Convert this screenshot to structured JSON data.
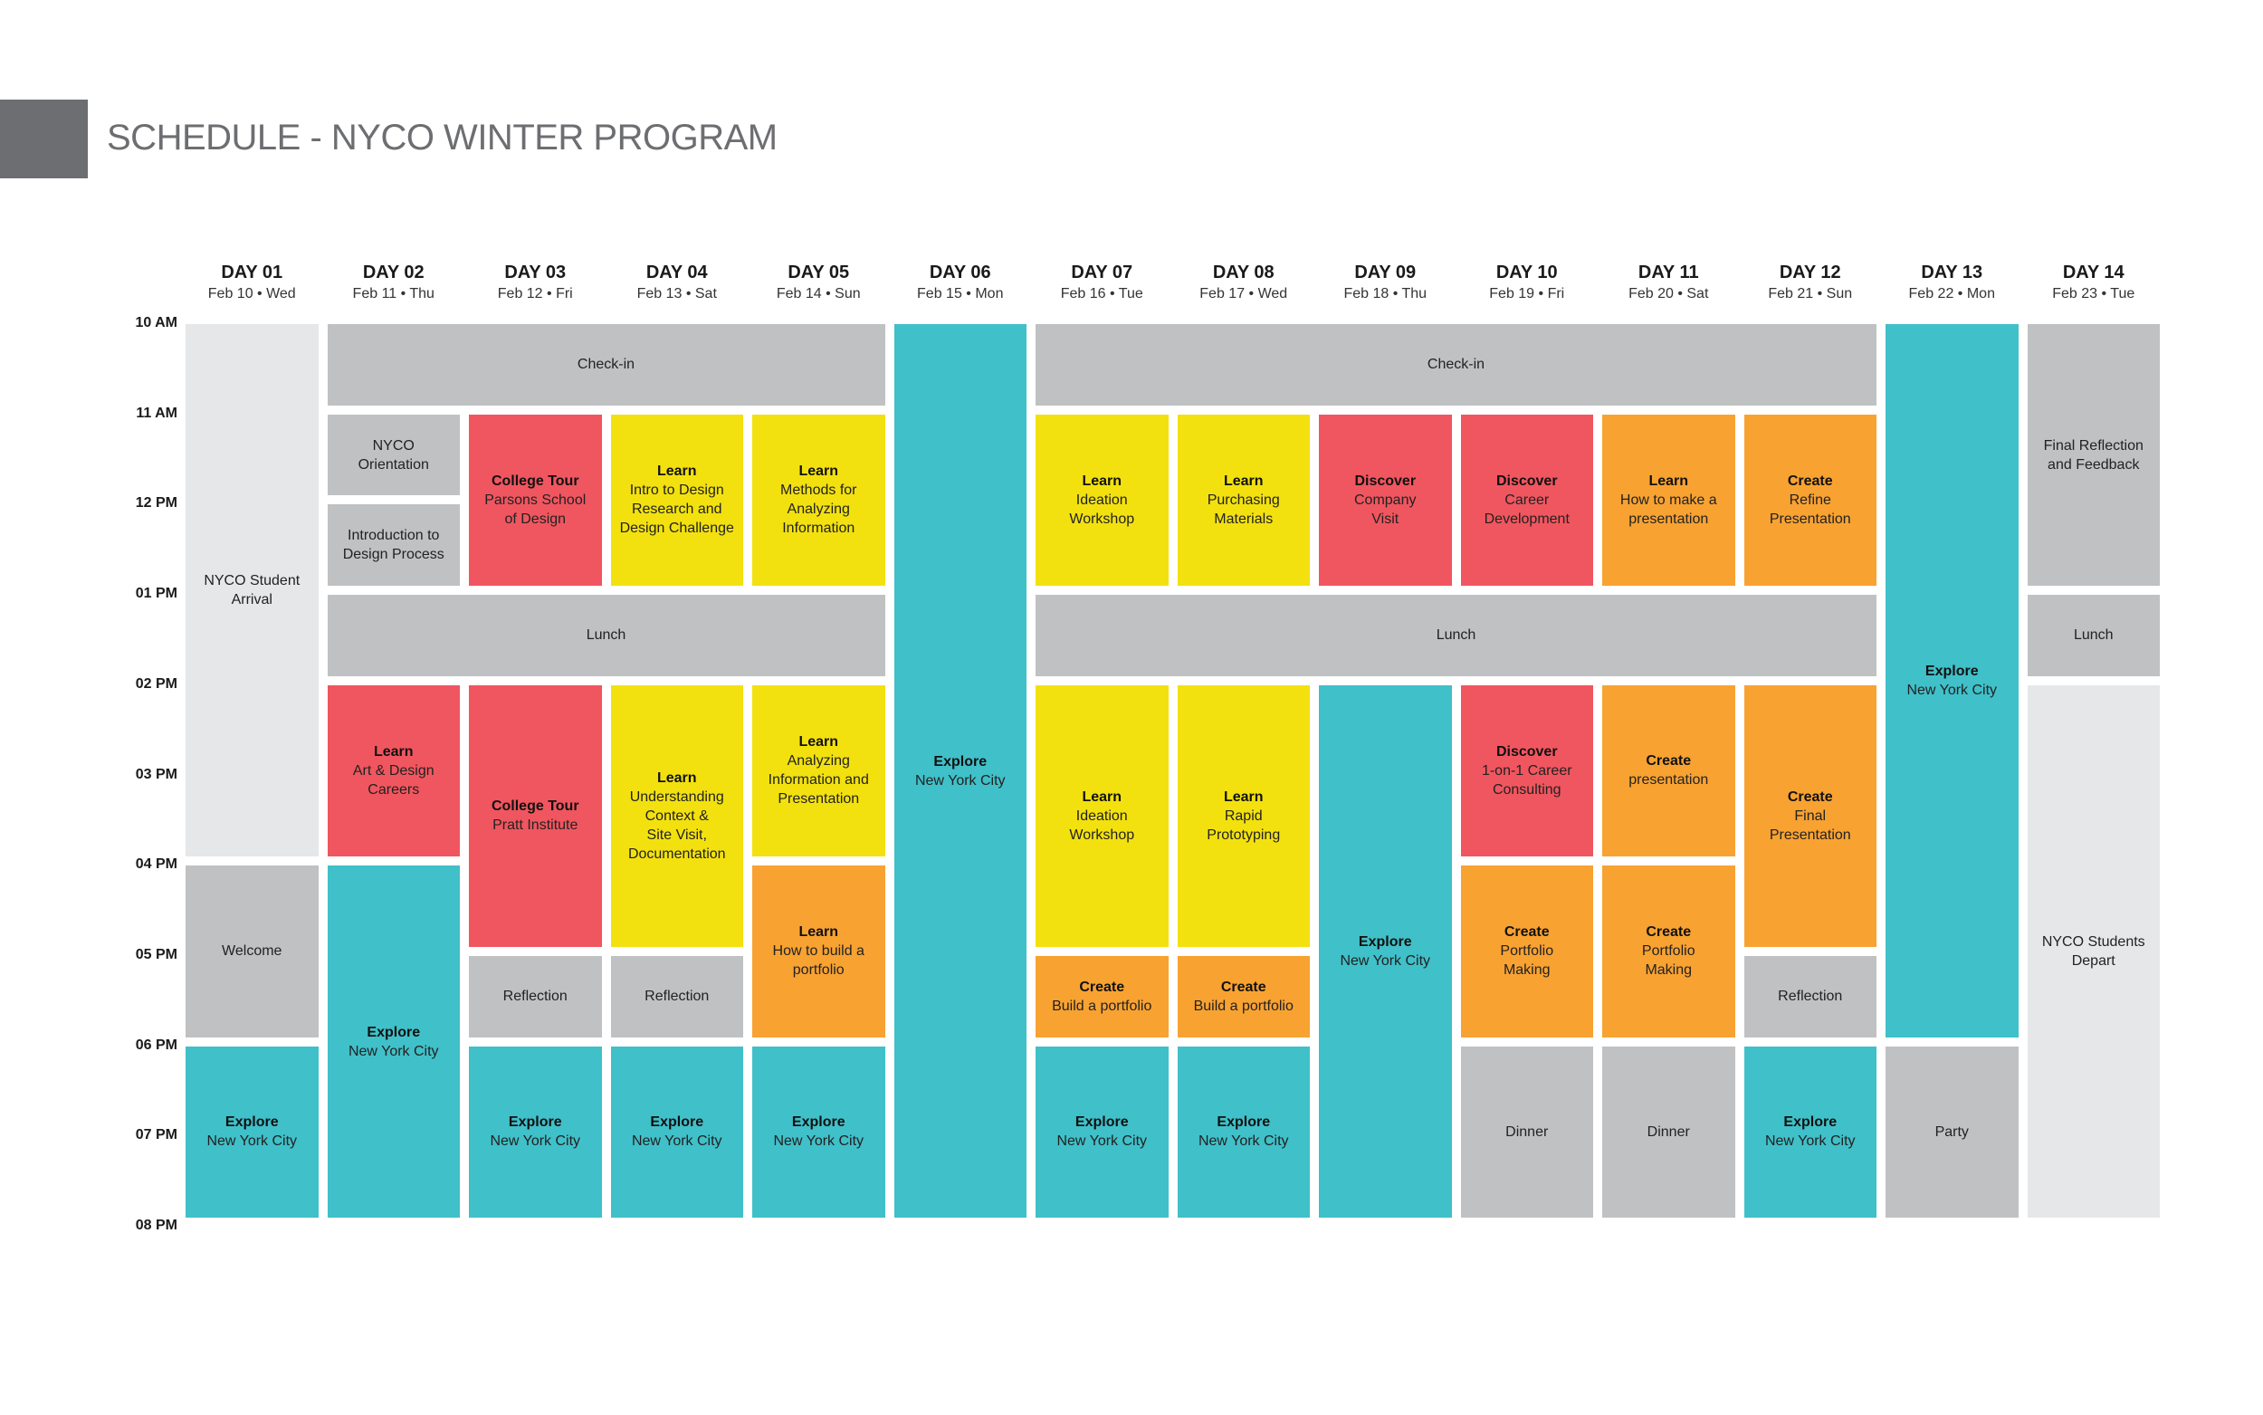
{
  "title": "SCHEDULE - NYCO WINTER PROGRAM",
  "colors": {
    "grey_tab": "#6d6e71",
    "gray": "#c0c1c3",
    "light": "#e6e7e8",
    "teal": "#40c0c9",
    "red": "#f0565f",
    "yellow": "#f3e10f",
    "orange": "#f8a232"
  },
  "times": [
    "10 AM",
    "11 AM",
    "12 PM",
    "01 PM",
    "02 PM",
    "03 PM",
    "04 PM",
    "05 PM",
    "06 PM",
    "07 PM",
    "08 PM"
  ],
  "days": [
    {
      "label": "DAY 01",
      "date": "Feb 10 • Wed"
    },
    {
      "label": "DAY 02",
      "date": "Feb 11 • Thu"
    },
    {
      "label": "DAY 03",
      "date": "Feb 12 • Fri"
    },
    {
      "label": "DAY 04",
      "date": "Feb 13 • Sat"
    },
    {
      "label": "DAY 05",
      "date": "Feb 14 • Sun"
    },
    {
      "label": "DAY 06",
      "date": "Feb 15 • Mon"
    },
    {
      "label": "DAY 07",
      "date": "Feb 16 • Tue"
    },
    {
      "label": "DAY 08",
      "date": "Feb 17 • Wed"
    },
    {
      "label": "DAY 09",
      "date": "Feb 18 • Thu"
    },
    {
      "label": "DAY 10",
      "date": "Feb 19 • Fri"
    },
    {
      "label": "DAY 11",
      "date": "Feb 20 • Sat"
    },
    {
      "label": "DAY 12",
      "date": "Feb 21 • Sun"
    },
    {
      "label": "DAY 13",
      "date": "Feb 22 • Mon"
    },
    {
      "label": "DAY 14",
      "date": "Feb 23 • Tue"
    }
  ],
  "events": [
    {
      "day_start": 1,
      "day_end": 1,
      "start": "10 AM",
      "end": "04 PM",
      "color": "light",
      "title": "",
      "text": "NYCO Student\nArrival"
    },
    {
      "day_start": 1,
      "day_end": 1,
      "start": "04 PM",
      "end": "06 PM",
      "color": "gray",
      "title": "",
      "text": "Welcome"
    },
    {
      "day_start": 1,
      "day_end": 1,
      "start": "06 PM",
      "end": "08 PM",
      "color": "teal",
      "title": "Explore",
      "text": "New York City"
    },
    {
      "day_start": 2,
      "day_end": 5,
      "start": "10 AM",
      "end": "11 AM",
      "color": "gray",
      "title": "",
      "text": "Check-in"
    },
    {
      "day_start": 2,
      "day_end": 2,
      "start": "11 AM",
      "end": "12 PM",
      "color": "gray",
      "title": "",
      "text": "NYCO\nOrientation"
    },
    {
      "day_start": 2,
      "day_end": 2,
      "start": "12 PM",
      "end": "01 PM",
      "color": "gray",
      "title": "",
      "text": "Introduction to\nDesign Process"
    },
    {
      "day_start": 2,
      "day_end": 5,
      "start": "01 PM",
      "end": "02 PM",
      "color": "gray",
      "title": "",
      "text": "Lunch"
    },
    {
      "day_start": 2,
      "day_end": 2,
      "start": "02 PM",
      "end": "04 PM",
      "color": "red",
      "title": "Learn",
      "text": "Art & Design\nCareers"
    },
    {
      "day_start": 2,
      "day_end": 2,
      "start": "04 PM",
      "end": "08 PM",
      "color": "teal",
      "title": "Explore",
      "text": "New York City"
    },
    {
      "day_start": 3,
      "day_end": 3,
      "start": "11 AM",
      "end": "01 PM",
      "color": "red",
      "title": "College Tour",
      "text": "Parsons School\nof Design"
    },
    {
      "day_start": 3,
      "day_end": 3,
      "start": "02 PM",
      "end": "05 PM",
      "color": "red",
      "title": "College Tour",
      "text": "Pratt Institute"
    },
    {
      "day_start": 3,
      "day_end": 3,
      "start": "05 PM",
      "end": "06 PM",
      "color": "gray",
      "title": "",
      "text": "Reflection"
    },
    {
      "day_start": 3,
      "day_end": 3,
      "start": "06 PM",
      "end": "08 PM",
      "color": "teal",
      "title": "Explore",
      "text": "New York City"
    },
    {
      "day_start": 4,
      "day_end": 4,
      "start": "11 AM",
      "end": "01 PM",
      "color": "yellow",
      "title": "Learn",
      "text": "Intro to Design\nResearch and\nDesign Challenge"
    },
    {
      "day_start": 4,
      "day_end": 4,
      "start": "02 PM",
      "end": "05 PM",
      "color": "yellow",
      "title": "Learn",
      "text": "Understanding\nContext &\nSite Visit,\nDocumentation"
    },
    {
      "day_start": 4,
      "day_end": 4,
      "start": "05 PM",
      "end": "06 PM",
      "color": "gray",
      "title": "",
      "text": "Reflection"
    },
    {
      "day_start": 4,
      "day_end": 4,
      "start": "06 PM",
      "end": "08 PM",
      "color": "teal",
      "title": "Explore",
      "text": "New York City"
    },
    {
      "day_start": 5,
      "day_end": 5,
      "start": "11 AM",
      "end": "01 PM",
      "color": "yellow",
      "title": "Learn",
      "text": "Methods for\nAnalyzing\nInformation"
    },
    {
      "day_start": 5,
      "day_end": 5,
      "start": "02 PM",
      "end": "04 PM",
      "color": "yellow",
      "title": "Learn",
      "text": "Analyzing\nInformation and\nPresentation"
    },
    {
      "day_start": 5,
      "day_end": 5,
      "start": "04 PM",
      "end": "06 PM",
      "color": "orange",
      "title": "Learn",
      "text": "How to build a\nportfolio"
    },
    {
      "day_start": 5,
      "day_end": 5,
      "start": "06 PM",
      "end": "08 PM",
      "color": "teal",
      "title": "Explore",
      "text": "New York City"
    },
    {
      "day_start": 6,
      "day_end": 6,
      "start": "10 AM",
      "end": "08 PM",
      "color": "teal",
      "title": "Explore",
      "text": "New York City"
    },
    {
      "day_start": 7,
      "day_end": 12,
      "start": "10 AM",
      "end": "11 AM",
      "color": "gray",
      "title": "",
      "text": "Check-in"
    },
    {
      "day_start": 7,
      "day_end": 12,
      "start": "01 PM",
      "end": "02 PM",
      "color": "gray",
      "title": "",
      "text": "Lunch"
    },
    {
      "day_start": 7,
      "day_end": 7,
      "start": "11 AM",
      "end": "01 PM",
      "color": "yellow",
      "title": "Learn",
      "text": "Ideation\nWorkshop"
    },
    {
      "day_start": 7,
      "day_end": 7,
      "start": "02 PM",
      "end": "05 PM",
      "color": "yellow",
      "title": "Learn",
      "text": "Ideation\nWorkshop"
    },
    {
      "day_start": 7,
      "day_end": 7,
      "start": "05 PM",
      "end": "06 PM",
      "color": "orange",
      "title": "Create",
      "text": "Build a portfolio"
    },
    {
      "day_start": 7,
      "day_end": 7,
      "start": "06 PM",
      "end": "08 PM",
      "color": "teal",
      "title": "Explore",
      "text": "New York City"
    },
    {
      "day_start": 8,
      "day_end": 8,
      "start": "11 AM",
      "end": "01 PM",
      "color": "yellow",
      "title": "Learn",
      "text": "Purchasing\nMaterials"
    },
    {
      "day_start": 8,
      "day_end": 8,
      "start": "02 PM",
      "end": "05 PM",
      "color": "yellow",
      "title": "Learn",
      "text": "Rapid\nPrototyping"
    },
    {
      "day_start": 8,
      "day_end": 8,
      "start": "05 PM",
      "end": "06 PM",
      "color": "orange",
      "title": "Create",
      "text": "Build a portfolio"
    },
    {
      "day_start": 8,
      "day_end": 8,
      "start": "06 PM",
      "end": "08 PM",
      "color": "teal",
      "title": "Explore",
      "text": "New York City"
    },
    {
      "day_start": 9,
      "day_end": 9,
      "start": "11 AM",
      "end": "01 PM",
      "color": "red",
      "title": "Discover",
      "text": "Company\nVisit"
    },
    {
      "day_start": 9,
      "day_end": 9,
      "start": "02 PM",
      "end": "08 PM",
      "color": "teal",
      "title": "Explore",
      "text": "New York City"
    },
    {
      "day_start": 10,
      "day_end": 10,
      "start": "11 AM",
      "end": "01 PM",
      "color": "red",
      "title": "Discover",
      "text": "Career\nDevelopment"
    },
    {
      "day_start": 10,
      "day_end": 10,
      "start": "02 PM",
      "end": "04 PM",
      "color": "red",
      "title": "Discover",
      "text": "1-on-1 Career\nConsulting"
    },
    {
      "day_start": 10,
      "day_end": 10,
      "start": "04 PM",
      "end": "06 PM",
      "color": "orange",
      "title": "Create",
      "text": "Portfolio\nMaking"
    },
    {
      "day_start": 10,
      "day_end": 10,
      "start": "06 PM",
      "end": "08 PM",
      "color": "gray",
      "title": "",
      "text": "Dinner"
    },
    {
      "day_start": 11,
      "day_end": 11,
      "start": "11 AM",
      "end": "01 PM",
      "color": "orange",
      "title": "Learn",
      "text": "How to make a\npresentation"
    },
    {
      "day_start": 11,
      "day_end": 11,
      "start": "02 PM",
      "end": "04 PM",
      "color": "orange",
      "title": "Create",
      "text": "presentation"
    },
    {
      "day_start": 11,
      "day_end": 11,
      "start": "04 PM",
      "end": "06 PM",
      "color": "orange",
      "title": "Create",
      "text": "Portfolio\nMaking"
    },
    {
      "day_start": 11,
      "day_end": 11,
      "start": "06 PM",
      "end": "08 PM",
      "color": "gray",
      "title": "",
      "text": "Dinner"
    },
    {
      "day_start": 12,
      "day_end": 12,
      "start": "11 AM",
      "end": "01 PM",
      "color": "orange",
      "title": "Create",
      "text": "Refine\nPresentation"
    },
    {
      "day_start": 12,
      "day_end": 12,
      "start": "02 PM",
      "end": "05 PM",
      "color": "orange",
      "title": "Create",
      "text": "Final\nPresentation"
    },
    {
      "day_start": 12,
      "day_end": 12,
      "start": "05 PM",
      "end": "06 PM",
      "color": "gray",
      "title": "",
      "text": "Reflection"
    },
    {
      "day_start": 12,
      "day_end": 12,
      "start": "06 PM",
      "end": "08 PM",
      "color": "teal",
      "title": "Explore",
      "text": "New York City"
    },
    {
      "day_start": 13,
      "day_end": 13,
      "start": "10 AM",
      "end": "06 PM",
      "color": "teal",
      "title": "Explore",
      "text": "New York City"
    },
    {
      "day_start": 13,
      "day_end": 13,
      "start": "06 PM",
      "end": "08 PM",
      "color": "gray",
      "title": "",
      "text": "Party"
    },
    {
      "day_start": 14,
      "day_end": 14,
      "start": "10 AM",
      "end": "01 PM",
      "color": "gray",
      "title": "",
      "text": "Final Reflection\nand Feedback"
    },
    {
      "day_start": 14,
      "day_end": 14,
      "start": "01 PM",
      "end": "02 PM",
      "color": "gray",
      "title": "",
      "text": "Lunch"
    },
    {
      "day_start": 14,
      "day_end": 14,
      "start": "02 PM",
      "end": "08 PM",
      "color": "light",
      "title": "",
      "text": "NYCO Students\nDepart"
    }
  ]
}
